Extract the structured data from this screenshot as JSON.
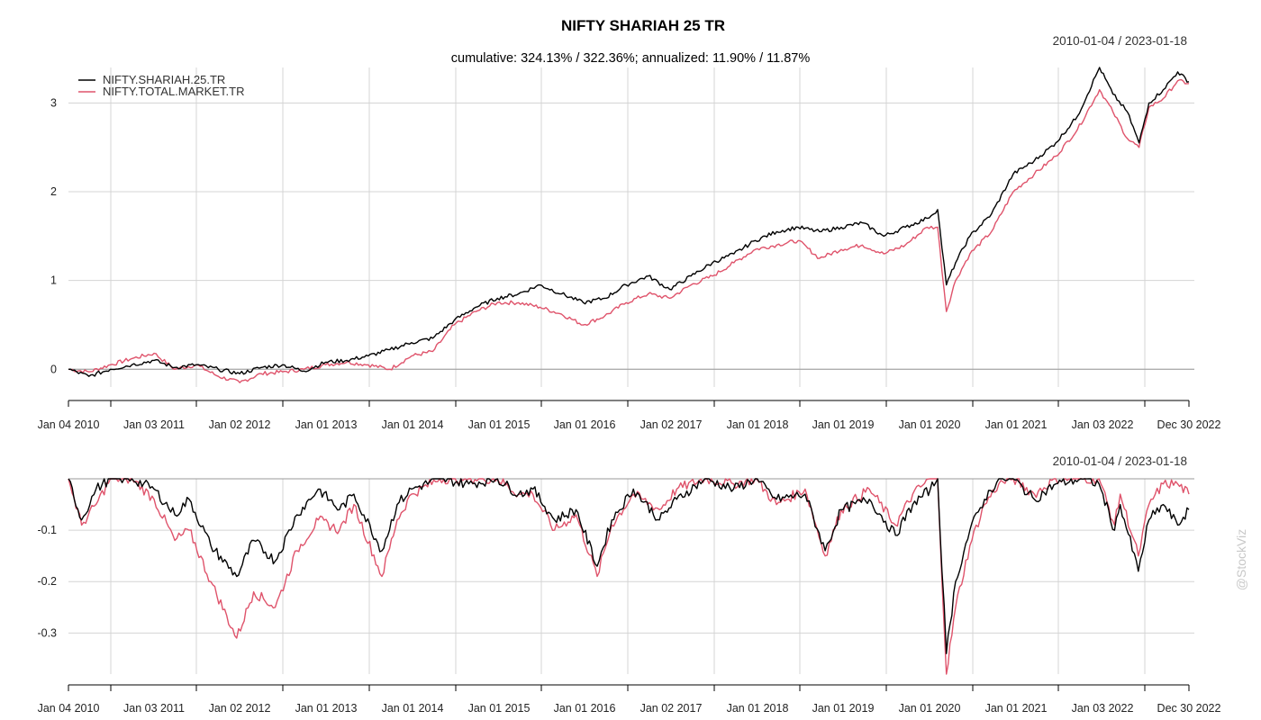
{
  "chart_data": [
    {
      "type": "line",
      "title": "NIFTY SHARIAH 25 TR",
      "subtitle": "cumulative: 324.13% / 322.36%; annualized: 11.90% / 11.87%",
      "date_range": "2010-01-04 / 2023-01-18",
      "x_tick_labels": [
        "Jan 04 2010",
        "Jan 03 2011",
        "Jan 02 2012",
        "Jan 01 2013",
        "Jan 01 2014",
        "Jan 01 2015",
        "Jan 01 2016",
        "Jan 02 2017",
        "Jan 01 2018",
        "Jan 01 2019",
        "Jan 01 2020",
        "Jan 01 2021",
        "Jan 03 2022",
        "Dec 30 2022"
      ],
      "y_ticks": [
        0,
        1,
        2,
        3
      ],
      "ylim": [
        -0.2,
        3.4
      ],
      "grid": true,
      "legend_position": "top-left",
      "series": [
        {
          "name": "NIFTY.SHARIAH.25.TR",
          "color": "#000000",
          "x": [
            "2010-01-04",
            "2010-04-01",
            "2010-07-01",
            "2010-10-01",
            "2011-01-03",
            "2011-04-01",
            "2011-07-01",
            "2011-10-03",
            "2012-01-02",
            "2012-04-02",
            "2012-07-02",
            "2012-10-01",
            "2013-01-01",
            "2013-04-01",
            "2013-07-01",
            "2013-10-01",
            "2014-01-01",
            "2014-04-01",
            "2014-07-01",
            "2014-10-01",
            "2015-01-01",
            "2015-04-01",
            "2015-07-01",
            "2015-10-01",
            "2016-01-01",
            "2016-04-01",
            "2016-07-01",
            "2016-10-03",
            "2017-01-02",
            "2017-04-03",
            "2017-07-03",
            "2017-10-02",
            "2018-01-01",
            "2018-04-02",
            "2018-07-02",
            "2018-10-01",
            "2019-01-01",
            "2019-04-01",
            "2019-07-01",
            "2019-10-01",
            "2020-01-01",
            "2020-02-15",
            "2020-03-23",
            "2020-05-01",
            "2020-07-01",
            "2020-10-01",
            "2021-01-01",
            "2021-04-01",
            "2021-07-01",
            "2021-10-01",
            "2022-01-03",
            "2022-03-01",
            "2022-05-01",
            "2022-06-20",
            "2022-08-01",
            "2022-10-01",
            "2022-12-01",
            "2023-01-18"
          ],
          "values": [
            0.0,
            -0.08,
            0.0,
            0.05,
            0.1,
            0.02,
            0.05,
            0.0,
            -0.05,
            0.02,
            0.05,
            -0.02,
            0.08,
            0.1,
            0.15,
            0.22,
            0.3,
            0.35,
            0.55,
            0.7,
            0.8,
            0.85,
            0.95,
            0.85,
            0.75,
            0.8,
            0.95,
            1.05,
            0.9,
            1.05,
            1.2,
            1.3,
            1.45,
            1.55,
            1.6,
            1.55,
            1.6,
            1.65,
            1.5,
            1.6,
            1.7,
            1.8,
            0.95,
            1.2,
            1.5,
            1.75,
            2.2,
            2.35,
            2.55,
            2.85,
            3.4,
            3.1,
            2.9,
            2.55,
            3.0,
            3.15,
            3.35,
            3.24
          ]
        },
        {
          "name": "NIFTY.TOTAL.MARKET.TR",
          "color": "#DF536B",
          "x": [
            "2010-01-04",
            "2010-04-01",
            "2010-07-01",
            "2010-10-01",
            "2011-01-03",
            "2011-04-01",
            "2011-07-01",
            "2011-10-03",
            "2012-01-02",
            "2012-04-02",
            "2012-07-02",
            "2012-10-01",
            "2013-01-01",
            "2013-04-01",
            "2013-07-01",
            "2013-10-01",
            "2014-01-01",
            "2014-04-01",
            "2014-07-01",
            "2014-10-01",
            "2015-01-01",
            "2015-04-01",
            "2015-07-01",
            "2015-10-01",
            "2016-01-01",
            "2016-04-01",
            "2016-07-01",
            "2016-10-03",
            "2017-01-02",
            "2017-04-03",
            "2017-07-03",
            "2017-10-02",
            "2018-01-01",
            "2018-04-02",
            "2018-07-02",
            "2018-10-01",
            "2019-01-01",
            "2019-04-01",
            "2019-07-01",
            "2019-10-01",
            "2020-01-01",
            "2020-02-15",
            "2020-03-23",
            "2020-05-01",
            "2020-07-01",
            "2020-10-01",
            "2021-01-01",
            "2021-04-01",
            "2021-07-01",
            "2021-10-01",
            "2022-01-03",
            "2022-03-01",
            "2022-05-01",
            "2022-06-20",
            "2022-08-01",
            "2022-10-01",
            "2022-12-01",
            "2023-01-18"
          ],
          "values": [
            0.0,
            -0.03,
            0.05,
            0.12,
            0.18,
            0.0,
            0.05,
            -0.08,
            -0.15,
            -0.05,
            -0.03,
            0.0,
            0.05,
            0.08,
            0.05,
            0.0,
            0.15,
            0.2,
            0.5,
            0.65,
            0.75,
            0.75,
            0.7,
            0.62,
            0.5,
            0.6,
            0.75,
            0.85,
            0.8,
            0.95,
            1.05,
            1.2,
            1.35,
            1.4,
            1.45,
            1.25,
            1.35,
            1.4,
            1.3,
            1.4,
            1.6,
            1.6,
            0.65,
            1.0,
            1.3,
            1.55,
            2.0,
            2.2,
            2.4,
            2.7,
            3.15,
            2.9,
            2.6,
            2.5,
            2.95,
            3.05,
            3.25,
            3.22
          ]
        }
      ]
    },
    {
      "type": "line",
      "date_range": "2010-01-04 / 2023-01-18",
      "x_tick_labels": [
        "Jan 04 2010",
        "Jan 03 2011",
        "Jan 02 2012",
        "Jan 01 2013",
        "Jan 01 2014",
        "Jan 01 2015",
        "Jan 01 2016",
        "Jan 02 2017",
        "Jan 01 2018",
        "Jan 01 2019",
        "Jan 01 2020",
        "Jan 01 2021",
        "Jan 03 2022",
        "Dec 30 2022"
      ],
      "y_ticks": [
        -0.1,
        -0.2,
        -0.3
      ],
      "ylim": [
        -0.38,
        0
      ],
      "grid": true,
      "series": [
        {
          "name": "NIFTY.SHARIAH.25.TR",
          "color": "#000000",
          "x": [
            "2010-01-04",
            "2010-03-01",
            "2010-05-01",
            "2010-07-01",
            "2010-10-01",
            "2011-01-03",
            "2011-04-01",
            "2011-06-01",
            "2011-09-01",
            "2011-12-20",
            "2012-03-01",
            "2012-06-01",
            "2012-09-01",
            "2012-12-01",
            "2013-03-01",
            "2013-05-01",
            "2013-08-28",
            "2013-11-01",
            "2014-01-01",
            "2014-05-01",
            "2014-09-01",
            "2015-01-01",
            "2015-04-01",
            "2015-06-01",
            "2015-09-01",
            "2015-12-01",
            "2016-02-29",
            "2016-05-01",
            "2016-08-01",
            "2016-11-20",
            "2017-02-01",
            "2017-06-01",
            "2017-10-01",
            "2018-01-01",
            "2018-04-01",
            "2018-08-01",
            "2018-10-25",
            "2019-01-01",
            "2019-05-01",
            "2019-08-20",
            "2019-11-01",
            "2020-01-15",
            "2020-02-15",
            "2020-03-23",
            "2020-05-01",
            "2020-07-01",
            "2020-09-01",
            "2020-11-01",
            "2021-01-01",
            "2021-04-01",
            "2021-07-01",
            "2021-10-15",
            "2022-01-01",
            "2022-03-08",
            "2022-04-01",
            "2022-06-17",
            "2022-08-01",
            "2022-10-01",
            "2022-12-01",
            "2023-01-18"
          ],
          "values": [
            0,
            -0.08,
            -0.02,
            0,
            0,
            -0.02,
            -0.07,
            -0.04,
            -0.13,
            -0.19,
            -0.12,
            -0.16,
            -0.07,
            -0.02,
            -0.06,
            -0.03,
            -0.14,
            -0.05,
            -0.02,
            0,
            -0.01,
            0,
            -0.03,
            -0.02,
            -0.08,
            -0.06,
            -0.17,
            -0.08,
            -0.02,
            -0.08,
            -0.04,
            0,
            -0.02,
            0,
            -0.04,
            -0.03,
            -0.14,
            -0.06,
            -0.04,
            -0.11,
            -0.05,
            -0.02,
            0,
            -0.34,
            -0.2,
            -0.1,
            -0.04,
            0,
            0,
            -0.04,
            -0.01,
            0,
            -0.01,
            -0.1,
            -0.05,
            -0.18,
            -0.08,
            -0.05,
            -0.09,
            -0.06
          ]
        },
        {
          "name": "NIFTY.TOTAL.MARKET.TR",
          "color": "#DF536B",
          "x": [
            "2010-01-04",
            "2010-03-01",
            "2010-05-01",
            "2010-07-01",
            "2010-10-01",
            "2011-01-03",
            "2011-04-01",
            "2011-06-01",
            "2011-09-01",
            "2011-12-20",
            "2012-03-01",
            "2012-06-01",
            "2012-09-01",
            "2012-12-01",
            "2013-03-01",
            "2013-05-01",
            "2013-08-28",
            "2013-11-01",
            "2014-01-01",
            "2014-05-01",
            "2014-09-01",
            "2015-01-01",
            "2015-04-01",
            "2015-06-01",
            "2015-09-01",
            "2015-12-01",
            "2016-02-29",
            "2016-05-01",
            "2016-08-01",
            "2016-11-20",
            "2017-02-01",
            "2017-06-01",
            "2017-10-01",
            "2018-01-01",
            "2018-04-01",
            "2018-08-01",
            "2018-10-25",
            "2019-01-01",
            "2019-05-01",
            "2019-08-20",
            "2019-11-01",
            "2020-01-15",
            "2020-02-15",
            "2020-03-23",
            "2020-05-01",
            "2020-07-01",
            "2020-09-01",
            "2020-11-01",
            "2021-01-01",
            "2021-04-01",
            "2021-07-01",
            "2021-10-15",
            "2022-01-01",
            "2022-03-08",
            "2022-04-01",
            "2022-06-17",
            "2022-08-01",
            "2022-10-01",
            "2022-12-01",
            "2023-01-18"
          ],
          "values": [
            0,
            -0.09,
            -0.05,
            0,
            0,
            -0.04,
            -0.12,
            -0.1,
            -0.2,
            -0.31,
            -0.22,
            -0.25,
            -0.14,
            -0.08,
            -0.1,
            -0.05,
            -0.19,
            -0.08,
            -0.03,
            0,
            0,
            0,
            -0.03,
            -0.03,
            -0.1,
            -0.07,
            -0.19,
            -0.09,
            -0.03,
            -0.06,
            -0.02,
            0,
            -0.01,
            0,
            -0.05,
            -0.02,
            -0.15,
            -0.06,
            -0.02,
            -0.09,
            -0.03,
            0,
            0,
            -0.38,
            -0.25,
            -0.13,
            -0.05,
            -0.01,
            0,
            -0.03,
            0,
            0,
            0,
            -0.09,
            -0.03,
            -0.15,
            -0.05,
            -0.01,
            -0.01,
            -0.03
          ]
        }
      ]
    }
  ],
  "watermark": "@StockViz"
}
